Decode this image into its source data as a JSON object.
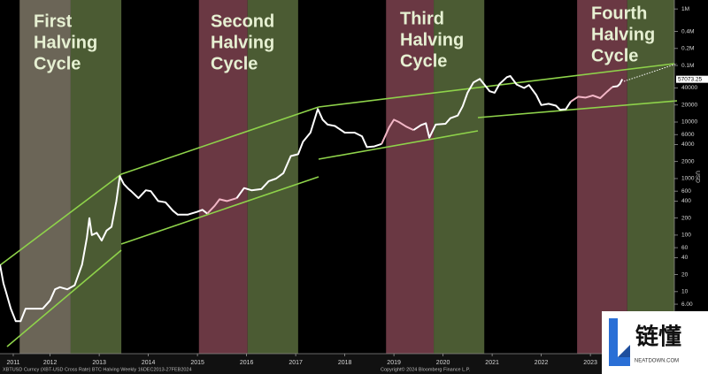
{
  "chart_data": {
    "type": "line",
    "log_y": true,
    "grid": false,
    "xlim": [
      2011.48,
      2025.21
    ],
    "ylim": [
      0.8,
      1440000
    ],
    "xticks": [
      {
        "value": 2011.75,
        "label": "2011"
      },
      {
        "value": 2012.5,
        "label": "2012"
      },
      {
        "value": 2013.5,
        "label": "2013"
      },
      {
        "value": 2014.5,
        "label": "2014"
      },
      {
        "value": 2015.5,
        "label": "2015"
      },
      {
        "value": 2016.5,
        "label": "2016"
      },
      {
        "value": 2017.5,
        "label": "2017"
      },
      {
        "value": 2018.5,
        "label": "2018"
      },
      {
        "value": 2019.5,
        "label": "2019"
      },
      {
        "value": 2020.5,
        "label": "2020"
      },
      {
        "value": 2021.5,
        "label": "2021"
      },
      {
        "value": 2022.5,
        "label": "2022"
      },
      {
        "value": 2023.5,
        "label": "2023"
      }
    ],
    "yticks": [
      {
        "value": 1000000,
        "label": "1M"
      },
      {
        "value": 400000,
        "label": "0.4M"
      },
      {
        "value": 200000,
        "label": "0.2M"
      },
      {
        "value": 100000,
        "label": "0.1M"
      },
      40000,
      20000,
      10000,
      6000,
      4000,
      2000,
      1000,
      600,
      400,
      200,
      100,
      60,
      40,
      20,
      10,
      {
        "value": 6,
        "label": "6.00"
      },
      {
        "value": 4,
        "label": "4.00"
      },
      {
        "value": 2,
        "label": "2.00"
      }
    ],
    "y_axis_label": "USD",
    "bands": [
      {
        "start": 2011.88,
        "end": 2012.92,
        "color": "#6b6557"
      },
      {
        "start": 2012.92,
        "end": 2013.95,
        "color": "#4b5b33"
      },
      {
        "start": 2015.53,
        "end": 2016.52,
        "color": "#6a3843"
      },
      {
        "start": 2016.52,
        "end": 2017.55,
        "color": "#4b5b33"
      },
      {
        "start": 2019.34,
        "end": 2020.31,
        "color": "#6a3843"
      },
      {
        "start": 2020.31,
        "end": 2021.34,
        "color": "#4b5b33"
      },
      {
        "start": 2023.23,
        "end": 2024.25,
        "color": "#6a3843"
      },
      {
        "start": 2024.25,
        "end": 2025.21,
        "color": "#4b5b33"
      }
    ],
    "annotations": [
      [
        "First",
        "Halving",
        "Cycle"
      ],
      [
        "Second",
        "Halving",
        "Cycle"
      ],
      [
        "Third",
        "Halving",
        "Cycle"
      ],
      [
        "Fourth",
        "Halving",
        "Cycle"
      ]
    ],
    "highlight_color": "#f2b6c6",
    "highlight_ranges": [
      [
        2015.8,
        2016.3
      ],
      [
        2019.3,
        2019.95
      ],
      [
        2023.2,
        2024.0
      ]
    ],
    "x": [
      2011.48,
      2011.55,
      2011.6,
      2011.7,
      2011.8,
      2011.9,
      2012.0,
      2012.1,
      2012.2,
      2012.35,
      2012.5,
      2012.6,
      2012.7,
      2012.85,
      2013.0,
      2013.15,
      2013.25,
      2013.3,
      2013.35,
      2013.45,
      2013.55,
      2013.65,
      2013.75,
      2013.85,
      2013.92,
      2014.0,
      2014.1,
      2014.15,
      2014.3,
      2014.45,
      2014.55,
      2014.7,
      2014.85,
      2015.0,
      2015.1,
      2015.3,
      2015.5,
      2015.6,
      2015.7,
      2015.85,
      2015.95,
      2016.1,
      2016.3,
      2016.45,
      2016.6,
      2016.8,
      2016.95,
      2017.1,
      2017.25,
      2017.4,
      2017.55,
      2017.65,
      2017.8,
      2017.95,
      2018.05,
      2018.15,
      2018.3,
      2018.5,
      2018.7,
      2018.85,
      2018.95,
      2019.1,
      2019.25,
      2019.4,
      2019.5,
      2019.6,
      2019.75,
      2019.9,
      2020.05,
      2020.15,
      2020.22,
      2020.35,
      2020.55,
      2020.65,
      2020.8,
      2020.9,
      2021.0,
      2021.12,
      2021.25,
      2021.35,
      2021.45,
      2021.55,
      2021.65,
      2021.8,
      2021.87,
      2022.0,
      2022.15,
      2022.25,
      2022.4,
      2022.5,
      2022.65,
      2022.8,
      2022.88,
      2023.0,
      2023.1,
      2023.25,
      2023.4,
      2023.55,
      2023.7,
      2023.85,
      2023.95,
      2024.05,
      2024.1,
      2024.15
    ],
    "series": [
      {
        "color": "#ffffff",
        "values": [
          30,
          14,
          10,
          5,
          3,
          3,
          5,
          5,
          5,
          5,
          7,
          11,
          12,
          11,
          13,
          30,
          90,
          200,
          100,
          110,
          80,
          120,
          140,
          400,
          1100,
          800,
          650,
          600,
          450,
          620,
          600,
          400,
          380,
          270,
          230,
          230,
          260,
          280,
          240,
          330,
          430,
          400,
          450,
          680,
          620,
          650,
          900,
          1000,
          1250,
          2500,
          2700,
          4500,
          6500,
          17000,
          11000,
          9000,
          8500,
          6500,
          6500,
          5600,
          3600,
          3700,
          4100,
          8000,
          11000,
          10000,
          8300,
          7200,
          8800,
          9500,
          5300,
          9000,
          9300,
          11700,
          13000,
          19000,
          33000,
          50000,
          58000,
          45000,
          35000,
          33000,
          47000,
          62000,
          65000,
          46000,
          40000,
          45000,
          30000,
          20000,
          21000,
          19500,
          16500,
          16800,
          23000,
          28000,
          27000,
          29500,
          26500,
          35000,
          42000,
          43000,
          47000,
          57073.25
        ]
      }
    ],
    "footer_left": "XBTUSD Curncy (XBT-USD Cross Rate) BTC Halving  Weekly 16DEC2013-27FEB2024",
    "footer_right": "Copyright© 2024 Bloomberg Finance L.P."
  },
  "watermark": {
    "name": "链懂",
    "site": "NEATDOWN.COM"
  }
}
